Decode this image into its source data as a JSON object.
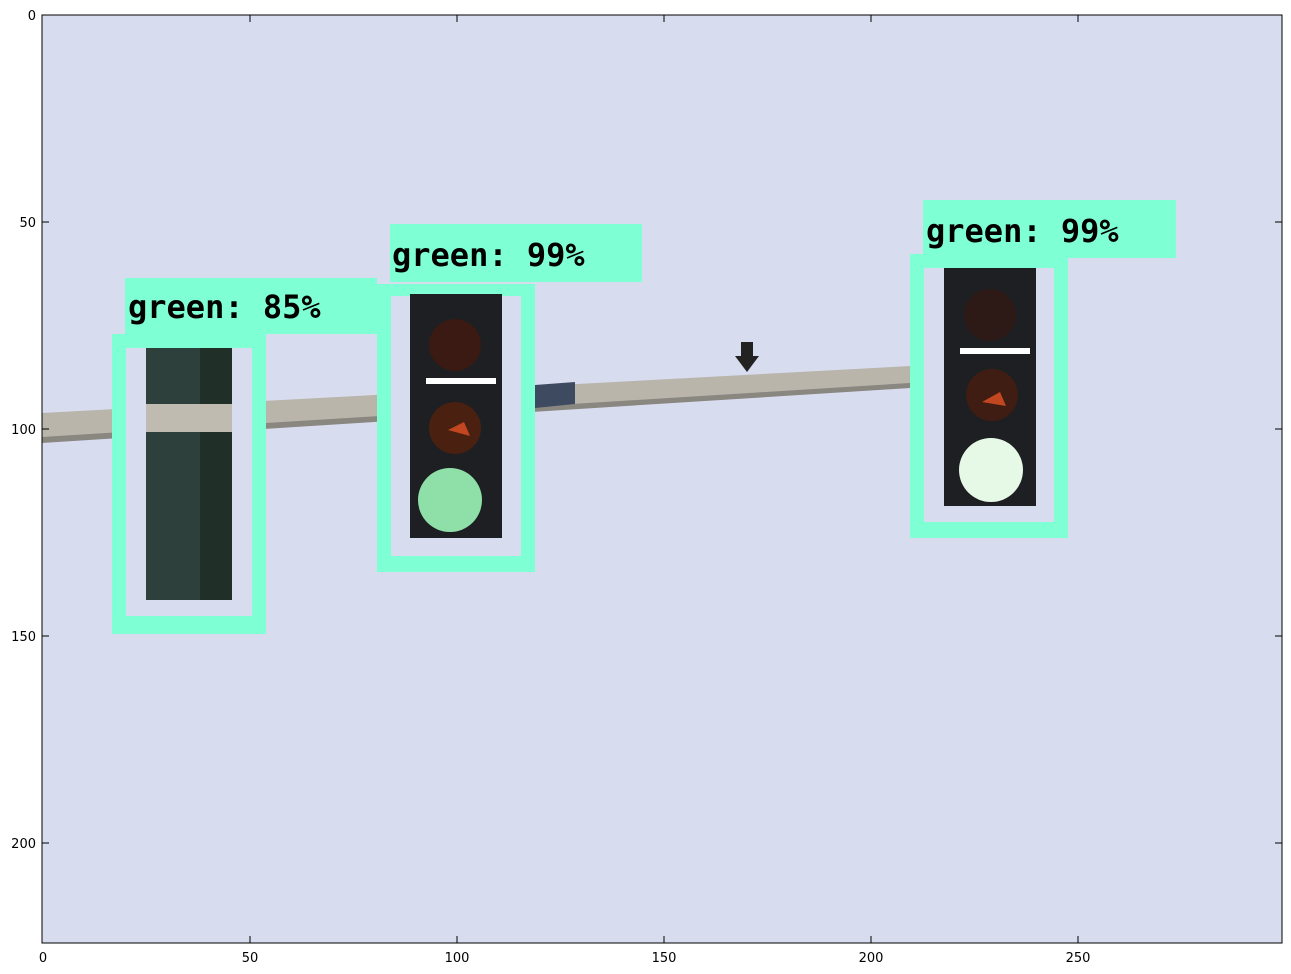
{
  "figure": {
    "axes": {
      "x_ticks": [
        "0",
        "50",
        "100",
        "150",
        "200",
        "250"
      ],
      "y_ticks": [
        "0",
        "50",
        "100",
        "150",
        "200"
      ]
    },
    "detections": [
      {
        "label": "green: 85%",
        "class": "green",
        "score_percent": 85
      },
      {
        "label": "green: 99%",
        "class": "green",
        "score_percent": 99
      },
      {
        "label": "green: 99%",
        "class": "green",
        "score_percent": 99
      }
    ],
    "colors": {
      "sky": "#d7dcef",
      "box": "#7fffd4",
      "pole": "#b9b5ab",
      "housing": "#1d1f22",
      "lit_green": "#8fe0a8"
    }
  }
}
